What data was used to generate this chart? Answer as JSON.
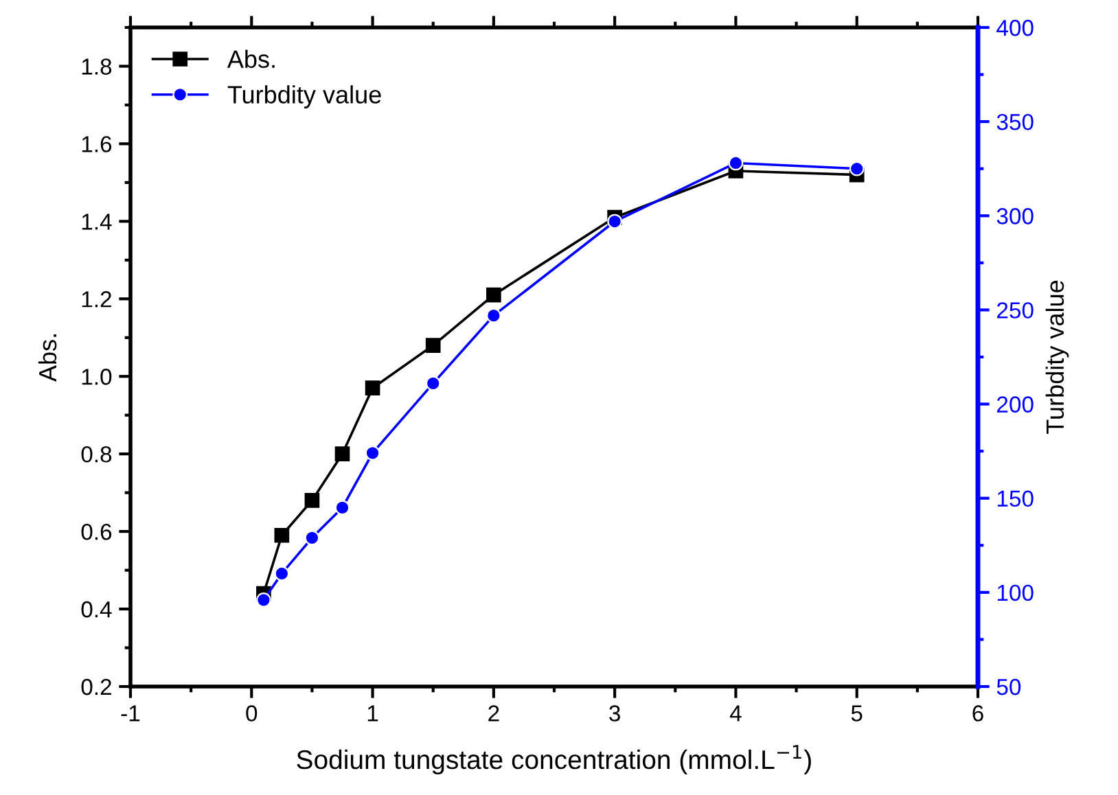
{
  "chart_data": {
    "type": "line",
    "xlabel": "Sodium tungstate concentration (mmol.L$^{−1}$)",
    "ylabel": "Abs.",
    "y2label": "Turbdity value",
    "x": [
      0.1,
      0.25,
      0.5,
      0.75,
      1,
      1.5,
      2,
      3,
      4,
      5
    ],
    "series": [
      {
        "name": "Abs.",
        "color": "#000000",
        "marker": "square",
        "values": [
          0.44,
          0.59,
          0.68,
          0.8,
          0.97,
          1.08,
          1.21,
          1.41,
          1.53,
          1.52
        ]
      },
      {
        "name": "Turbdity value",
        "color": "#0000ff",
        "marker": "circle",
        "axis": "y2",
        "values": [
          96,
          110,
          129,
          145,
          174,
          211,
          247,
          297,
          328,
          325
        ]
      }
    ],
    "xlim": [
      -1,
      6
    ],
    "xticks": [
      -1,
      0,
      1,
      2,
      3,
      4,
      5,
      6
    ],
    "ylim": [
      0.2,
      1.9
    ],
    "yticks": [
      0.2,
      0.4,
      0.6,
      0.8,
      {
        "value": 1.0,
        "label": "1.0"
      },
      1.2,
      1.4,
      1.6,
      1.8
    ],
    "y2lim": [
      50,
      400
    ],
    "y2ticks": [
      50,
      100,
      150,
      200,
      250,
      300,
      350,
      400
    ],
    "legend": "top left",
    "grid": false,
    "line_style": "solid"
  }
}
